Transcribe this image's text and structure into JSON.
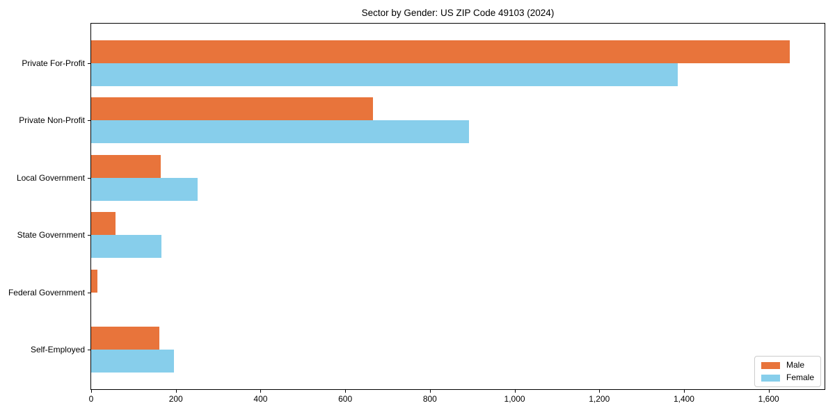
{
  "chart_data": {
    "type": "bar",
    "orientation": "horizontal",
    "title": "Sector by Gender: US ZIP Code 49103 (2024)",
    "categories": [
      "Private For-Profit",
      "Private Non-Profit",
      "Local Government",
      "State Government",
      "Federal Government",
      "Self-Employed"
    ],
    "series": [
      {
        "name": "Male",
        "color": "#e8743b",
        "values": [
          1650,
          665,
          164,
          57,
          15,
          161
        ]
      },
      {
        "name": "Female",
        "color": "#87ceeb",
        "values": [
          1386,
          892,
          251,
          166,
          0,
          195
        ]
      }
    ],
    "xlabel": "",
    "ylabel": "",
    "xlim": [
      0,
      1732
    ],
    "xticks": [
      0,
      200,
      400,
      600,
      800,
      1000,
      1200,
      1400,
      1600
    ],
    "xtick_labels": [
      "0",
      "200",
      "400",
      "600",
      "800",
      "1,000",
      "1,200",
      "1,400",
      "1,600"
    ],
    "grid": false,
    "legend_position": "lower right",
    "colors": {
      "axis": "#000000",
      "background": "#ffffff",
      "legend_border": "#cccccc"
    }
  }
}
